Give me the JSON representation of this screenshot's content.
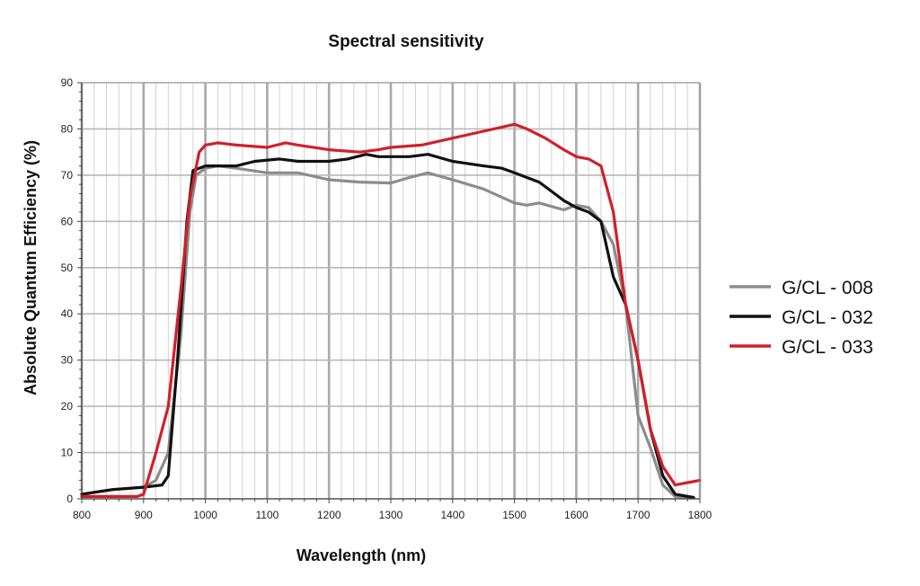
{
  "chart_data": {
    "type": "line",
    "title": "Spectral sensitivity",
    "xlabel": "Wavelength (nm)",
    "ylabel": "Absolute Quantum Efficiency (%)",
    "xlim": [
      800,
      1800
    ],
    "ylim": [
      0,
      90
    ],
    "x_ticks": [
      "800",
      "900",
      "1000",
      "1100",
      "1200",
      "1300",
      "1400",
      "1500",
      "1600",
      "1700",
      "1800"
    ],
    "y_ticks": [
      "0",
      "10",
      "20",
      "30",
      "40",
      "50",
      "60",
      "70",
      "80",
      "90"
    ],
    "grid": true,
    "legend_position": "right",
    "series": [
      {
        "name": "G/CL - 008",
        "color": "#8c8c8c",
        "points": [
          [
            800,
            1
          ],
          [
            850,
            2
          ],
          [
            900,
            2.5
          ],
          [
            920,
            4
          ],
          [
            940,
            10
          ],
          [
            960,
            35
          ],
          [
            975,
            62
          ],
          [
            985,
            70
          ],
          [
            1000,
            71.5
          ],
          [
            1020,
            72
          ],
          [
            1050,
            71.5
          ],
          [
            1100,
            70.5
          ],
          [
            1150,
            70.5
          ],
          [
            1200,
            69
          ],
          [
            1250,
            68.5
          ],
          [
            1300,
            68.3
          ],
          [
            1330,
            69.5
          ],
          [
            1360,
            70.5
          ],
          [
            1400,
            69
          ],
          [
            1450,
            67
          ],
          [
            1500,
            64
          ],
          [
            1520,
            63.5
          ],
          [
            1540,
            64
          ],
          [
            1580,
            62.5
          ],
          [
            1600,
            63.5
          ],
          [
            1620,
            63
          ],
          [
            1640,
            60
          ],
          [
            1660,
            55
          ],
          [
            1680,
            42
          ],
          [
            1690,
            30
          ],
          [
            1700,
            18
          ],
          [
            1720,
            11
          ],
          [
            1740,
            3
          ],
          [
            1760,
            0.5
          ],
          [
            1780,
            0.3
          ]
        ]
      },
      {
        "name": "G/CL - 032",
        "color": "#111111",
        "points": [
          [
            800,
            1
          ],
          [
            850,
            2
          ],
          [
            900,
            2.5
          ],
          [
            930,
            3
          ],
          [
            940,
            5
          ],
          [
            955,
            30
          ],
          [
            970,
            60
          ],
          [
            980,
            71
          ],
          [
            1000,
            72
          ],
          [
            1020,
            72
          ],
          [
            1050,
            72
          ],
          [
            1080,
            73
          ],
          [
            1120,
            73.5
          ],
          [
            1150,
            73
          ],
          [
            1200,
            73
          ],
          [
            1230,
            73.5
          ],
          [
            1260,
            74.5
          ],
          [
            1280,
            74
          ],
          [
            1300,
            74
          ],
          [
            1330,
            74
          ],
          [
            1360,
            74.5
          ],
          [
            1400,
            73
          ],
          [
            1450,
            72
          ],
          [
            1480,
            71.5
          ],
          [
            1500,
            70.5
          ],
          [
            1520,
            69.5
          ],
          [
            1540,
            68.5
          ],
          [
            1560,
            66.5
          ],
          [
            1580,
            64.5
          ],
          [
            1600,
            63
          ],
          [
            1620,
            62
          ],
          [
            1640,
            60
          ],
          [
            1660,
            48
          ],
          [
            1680,
            42
          ],
          [
            1700,
            30
          ],
          [
            1720,
            15
          ],
          [
            1740,
            5
          ],
          [
            1760,
            1
          ],
          [
            1790,
            0.3
          ]
        ]
      },
      {
        "name": "G/CL - 033",
        "color": "#d0202a",
        "points": [
          [
            800,
            0.5
          ],
          [
            850,
            0.5
          ],
          [
            890,
            0.5
          ],
          [
            900,
            1
          ],
          [
            920,
            10
          ],
          [
            940,
            20
          ],
          [
            960,
            45
          ],
          [
            975,
            65
          ],
          [
            990,
            75
          ],
          [
            1000,
            76.5
          ],
          [
            1020,
            77
          ],
          [
            1050,
            76.5
          ],
          [
            1100,
            76
          ],
          [
            1130,
            77
          ],
          [
            1150,
            76.5
          ],
          [
            1200,
            75.5
          ],
          [
            1250,
            75
          ],
          [
            1280,
            75.5
          ],
          [
            1300,
            76
          ],
          [
            1350,
            76.5
          ],
          [
            1400,
            78
          ],
          [
            1450,
            79.5
          ],
          [
            1500,
            81
          ],
          [
            1520,
            80
          ],
          [
            1550,
            78
          ],
          [
            1580,
            75.5
          ],
          [
            1600,
            74
          ],
          [
            1620,
            73.5
          ],
          [
            1640,
            72
          ],
          [
            1660,
            62
          ],
          [
            1680,
            42
          ],
          [
            1700,
            30
          ],
          [
            1720,
            15
          ],
          [
            1740,
            7
          ],
          [
            1760,
            3
          ],
          [
            1780,
            3.5
          ],
          [
            1800,
            4
          ]
        ]
      }
    ]
  }
}
